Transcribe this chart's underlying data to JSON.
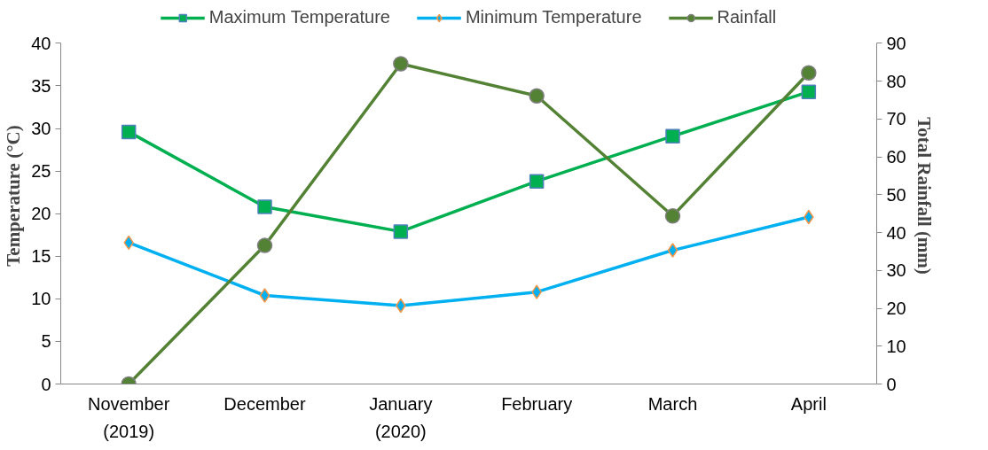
{
  "chart_data": {
    "type": "line",
    "categories": [
      "November\n(2019)",
      "December",
      "January\n(2020)",
      "February",
      "March",
      "April"
    ],
    "series": [
      {
        "name": "Maximum Temperature",
        "color": "#00b050",
        "marker": "square",
        "values": [
          29.6,
          20.8,
          17.9,
          23.8,
          29.1,
          34.3
        ]
      },
      {
        "name": "Minimum Temperature",
        "color": "#00b0f0",
        "marker": "diamond",
        "values": [
          16.6,
          10.4,
          9.2,
          10.8,
          15.7,
          19.6
        ]
      },
      {
        "name": "Rainfall",
        "color": "#548235",
        "marker": "circle",
        "axis": "y2",
        "values": [
          0,
          36.6,
          84.6,
          76.1,
          44.4,
          82.2
        ]
      }
    ],
    "ylabel": "Temperature (°C)",
    "y2label": "Total Rainfall (mm)",
    "ylim": [
      0,
      40
    ],
    "yticks": [
      0,
      5,
      10,
      15,
      20,
      25,
      30,
      35,
      40
    ],
    "y2lim": [
      0,
      90
    ],
    "y2ticks": [
      0,
      10,
      20,
      30,
      40,
      50,
      60,
      70,
      80,
      90
    ],
    "grid": false,
    "legend": "top",
    "line_style": "solid"
  }
}
